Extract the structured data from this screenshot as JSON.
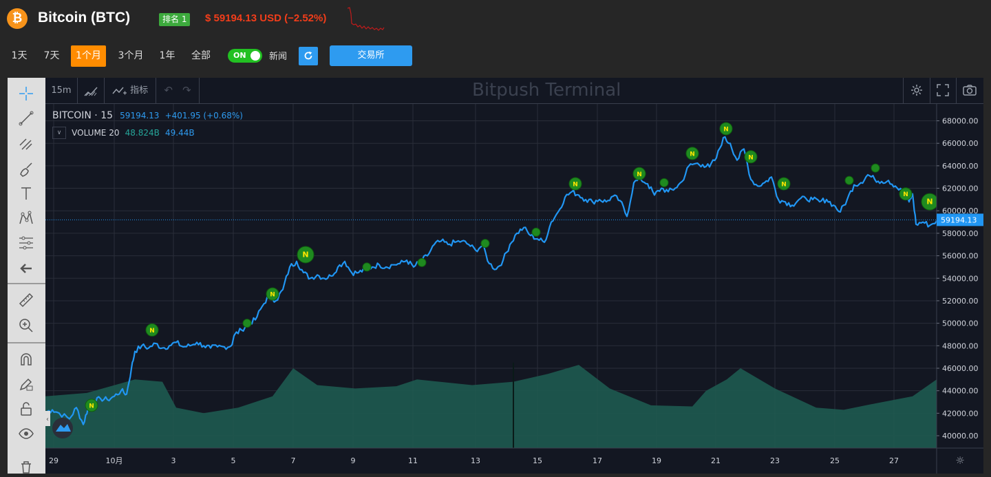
{
  "header": {
    "coin_symbol_glyph": "₿",
    "title": "Bitcoin (BTC)",
    "rank": "排名 1",
    "price": "$ 59194.13 USD (−2.52%)"
  },
  "range_buttons": [
    "1天",
    "7天",
    "1个月",
    "3个月",
    "1年",
    "全部"
  ],
  "active_range": "1个月",
  "news_toggle": {
    "state": "ON",
    "label": "新闻"
  },
  "exchange_button": "交易所",
  "toolbar": {
    "interval": "15m",
    "indicators_label": "指标",
    "watermark": "Bitpush Terminal"
  },
  "legend": {
    "symbol": "BITCOIN · 15",
    "price": "59194.13",
    "change": "+401.95 (+0.68%)",
    "volume_label": "VOLUME 20",
    "volume_value_1": "48.824B",
    "volume_value_2": "49.44B"
  },
  "colors": {
    "price_line": "#2196f3",
    "volume": "#1e5a50",
    "news_marker": "#1f8a1f",
    "accent_orange": "#ff8c00",
    "price_red": "#f23d1a"
  },
  "chart_data": {
    "type": "line",
    "series": [
      {
        "name": "BITCOIN",
        "points": [
          [
            0,
            42100
          ],
          [
            10,
            42300
          ],
          [
            20,
            42000
          ],
          [
            35,
            41500
          ],
          [
            45,
            42500
          ],
          [
            55,
            41000
          ],
          [
            62,
            42500
          ],
          [
            70,
            43000
          ],
          [
            80,
            43300
          ],
          [
            90,
            43200
          ],
          [
            100,
            43500
          ],
          [
            110,
            44000
          ],
          [
            118,
            43700
          ],
          [
            125,
            46000
          ],
          [
            130,
            47500
          ],
          [
            140,
            48000
          ],
          [
            150,
            47800
          ],
          [
            160,
            48200
          ],
          [
            170,
            47800
          ],
          [
            180,
            48000
          ],
          [
            190,
            48300
          ],
          [
            200,
            47900
          ],
          [
            210,
            48000
          ],
          [
            220,
            48300
          ],
          [
            230,
            48000
          ],
          [
            240,
            47800
          ],
          [
            250,
            47900
          ],
          [
            260,
            47900
          ],
          [
            270,
            48000
          ],
          [
            275,
            49000
          ],
          [
            285,
            49400
          ],
          [
            295,
            50000
          ],
          [
            305,
            50300
          ],
          [
            315,
            51500
          ],
          [
            325,
            52500
          ],
          [
            335,
            52000
          ],
          [
            345,
            53000
          ],
          [
            355,
            55000
          ],
          [
            365,
            55500
          ],
          [
            375,
            54500
          ],
          [
            385,
            54000
          ],
          [
            395,
            54300
          ],
          [
            405,
            54000
          ],
          [
            415,
            54200
          ],
          [
            425,
            55000
          ],
          [
            435,
            55500
          ],
          [
            445,
            54500
          ],
          [
            455,
            54500
          ],
          [
            465,
            54800
          ],
          [
            475,
            55000
          ],
          [
            485,
            55200
          ],
          [
            495,
            55000
          ],
          [
            505,
            55200
          ],
          [
            515,
            55300
          ],
          [
            525,
            55600
          ],
          [
            535,
            55000
          ],
          [
            545,
            55500
          ],
          [
            555,
            56000
          ],
          [
            565,
            57000
          ],
          [
            575,
            57300
          ],
          [
            585,
            57000
          ],
          [
            595,
            57200
          ],
          [
            605,
            57300
          ],
          [
            615,
            57000
          ],
          [
            625,
            56500
          ],
          [
            635,
            56900
          ],
          [
            645,
            55300
          ],
          [
            655,
            54800
          ],
          [
            665,
            55600
          ],
          [
            675,
            57000
          ],
          [
            685,
            58000
          ],
          [
            695,
            58500
          ],
          [
            705,
            57800
          ],
          [
            715,
            57500
          ],
          [
            725,
            57200
          ],
          [
            735,
            59000
          ],
          [
            745,
            59900
          ],
          [
            755,
            61200
          ],
          [
            765,
            61700
          ],
          [
            775,
            61400
          ],
          [
            785,
            61000
          ],
          [
            795,
            60800
          ],
          [
            805,
            61000
          ],
          [
            815,
            60800
          ],
          [
            825,
            61300
          ],
          [
            835,
            60900
          ],
          [
            845,
            59500
          ],
          [
            855,
            62500
          ],
          [
            865,
            62800
          ],
          [
            875,
            62400
          ],
          [
            885,
            61400
          ],
          [
            895,
            62000
          ],
          [
            905,
            61700
          ],
          [
            915,
            62000
          ],
          [
            925,
            62600
          ],
          [
            935,
            64000
          ],
          [
            945,
            64200
          ],
          [
            955,
            64100
          ],
          [
            965,
            63900
          ],
          [
            975,
            64700
          ],
          [
            985,
            66500
          ],
          [
            995,
            66000
          ],
          [
            1005,
            64500
          ],
          [
            1015,
            65500
          ],
          [
            1025,
            62800
          ],
          [
            1035,
            62200
          ],
          [
            1045,
            62500
          ],
          [
            1055,
            63000
          ],
          [
            1065,
            61000
          ],
          [
            1075,
            60800
          ],
          [
            1085,
            60500
          ],
          [
            1095,
            61000
          ],
          [
            1105,
            61100
          ],
          [
            1115,
            61000
          ],
          [
            1125,
            60800
          ],
          [
            1135,
            61000
          ],
          [
            1145,
            60500
          ],
          [
            1155,
            59900
          ],
          [
            1165,
            61000
          ],
          [
            1175,
            62300
          ],
          [
            1185,
            62500
          ],
          [
            1195,
            63200
          ],
          [
            1205,
            62800
          ],
          [
            1215,
            62600
          ],
          [
            1225,
            62700
          ],
          [
            1235,
            62200
          ],
          [
            1245,
            61700
          ],
          [
            1255,
            60800
          ],
          [
            1260,
            61500
          ],
          [
            1265,
            58800
          ],
          [
            1275,
            59000
          ],
          [
            1285,
            58700
          ],
          [
            1295,
            59100
          ]
        ]
      }
    ],
    "volume": [
      [
        0,
        43500
      ],
      [
        60,
        43800
      ],
      [
        130,
        45000
      ],
      [
        170,
        44800
      ],
      [
        190,
        42500
      ],
      [
        230,
        42000
      ],
      [
        280,
        42500
      ],
      [
        330,
        43500
      ],
      [
        360,
        46000
      ],
      [
        395,
        44500
      ],
      [
        450,
        44200
      ],
      [
        510,
        44400
      ],
      [
        540,
        45000
      ],
      [
        620,
        44500
      ],
      [
        680,
        44800
      ],
      [
        730,
        45500
      ],
      [
        775,
        46300
      ],
      [
        820,
        44200
      ],
      [
        880,
        42700
      ],
      [
        940,
        42600
      ],
      [
        960,
        44000
      ],
      [
        990,
        45000
      ],
      [
        1010,
        46000
      ],
      [
        1060,
        44200
      ],
      [
        1120,
        42500
      ],
      [
        1160,
        42300
      ],
      [
        1200,
        42800
      ],
      [
        1260,
        43500
      ],
      [
        1295,
        45000
      ]
    ],
    "volume_spike": [
      680,
      46500
    ],
    "news_markers": [
      [
        67,
        42700,
        "N"
      ],
      [
        155,
        49400,
        "N"
      ],
      [
        293,
        50000,
        ""
      ],
      [
        330,
        52600,
        "N"
      ],
      [
        378,
        56100,
        "N"
      ],
      [
        467,
        55000,
        ""
      ],
      [
        547,
        55400,
        ""
      ],
      [
        639,
        57100,
        ""
      ],
      [
        713,
        58100,
        ""
      ],
      [
        770,
        62400,
        "N"
      ],
      [
        863,
        63300,
        "N"
      ],
      [
        899,
        62500,
        ""
      ],
      [
        940,
        65100,
        "N"
      ],
      [
        989,
        67300,
        "N"
      ],
      [
        1025,
        64800,
        "N"
      ],
      [
        1073,
        62400,
        "N"
      ],
      [
        1168,
        62700,
        ""
      ],
      [
        1206,
        63800,
        ""
      ],
      [
        1250,
        61500,
        "N"
      ],
      [
        1285,
        60800,
        "N"
      ]
    ],
    "last_price": 59194.13,
    "y_ticks": [
      40000,
      42000,
      44000,
      46000,
      48000,
      50000,
      52000,
      54000,
      56000,
      58000,
      60000,
      62000,
      64000,
      66000,
      68000
    ],
    "y_tick_labels": [
      "40000.00",
      "42000.00",
      "44000.00",
      "46000.00",
      "48000.00",
      "50000.00",
      "52000.00",
      "54000.00",
      "56000.00",
      "58000.00",
      "60000.00",
      "62000.00",
      "64000.00",
      "66000.00",
      "68000.00"
    ],
    "x_ticks": [
      {
        "x": 12,
        "label": "29"
      },
      {
        "x": 100,
        "label": "10月"
      },
      {
        "x": 186,
        "label": "3"
      },
      {
        "x": 273,
        "label": "5"
      },
      {
        "x": 360,
        "label": "7"
      },
      {
        "x": 447,
        "label": "9"
      },
      {
        "x": 534,
        "label": "11"
      },
      {
        "x": 625,
        "label": "13"
      },
      {
        "x": 715,
        "label": "15"
      },
      {
        "x": 802,
        "label": "17"
      },
      {
        "x": 888,
        "label": "19"
      },
      {
        "x": 974,
        "label": "21"
      },
      {
        "x": 1060,
        "label": "23"
      },
      {
        "x": 1147,
        "label": "25"
      },
      {
        "x": 1233,
        "label": "27"
      }
    ],
    "ylim": [
      38900,
      69500
    ],
    "xlim": [
      0,
      1295
    ],
    "grid": true
  }
}
